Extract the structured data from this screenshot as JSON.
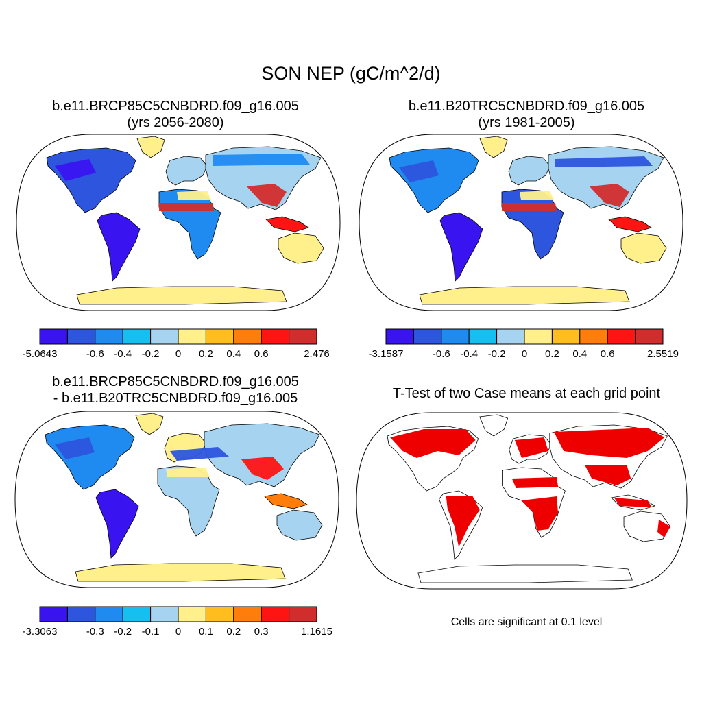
{
  "title": "SON NEP (gC/m^2/d)",
  "panels": [
    {
      "title_line1": "b.e11.BRCP85C5CNBDRD.f09_g16.005",
      "title_line2": "(yrs 2056-2080)"
    },
    {
      "title_line1": "b.e11.B20TRC5CNBDRD.f09_g16.005",
      "title_line2": "(yrs 1981-2005)"
    },
    {
      "title_line1": "b.e11.BRCP85C5CNBDRD.f09_g16.005",
      "title_line2": "- b.e11.B20TRC5CNBDRD.f09_g16.005"
    },
    {
      "title_line1": "T-Test of two Case means at each grid point"
    }
  ],
  "colorbars": [
    {
      "labels": [
        "-5.0643",
        "-0.6",
        "-0.4",
        "-0.2",
        "0",
        "0.2",
        "0.4",
        "0.6",
        "2.476"
      ]
    },
    {
      "labels": [
        "-3.1587",
        "-0.6",
        "-0.4",
        "-0.2",
        "0",
        "0.2",
        "0.4",
        "0.6",
        "2.5519"
      ]
    },
    {
      "labels": [
        "-3.3063",
        "-0.3",
        "-0.2",
        "-0.1",
        "0",
        "0.1",
        "0.2",
        "0.3",
        "1.1615"
      ]
    }
  ],
  "colors": [
    "#3a14f0",
    "#2d55de",
    "#1f8bf0",
    "#15bff0",
    "#a6d4f0",
    "#fff08c",
    "#ffbe1e",
    "#ff7d0a",
    "#ff1414",
    "#d22d2d"
  ],
  "significance_color": "#ee0000",
  "note": "Cells are significant at 0.1 level"
}
